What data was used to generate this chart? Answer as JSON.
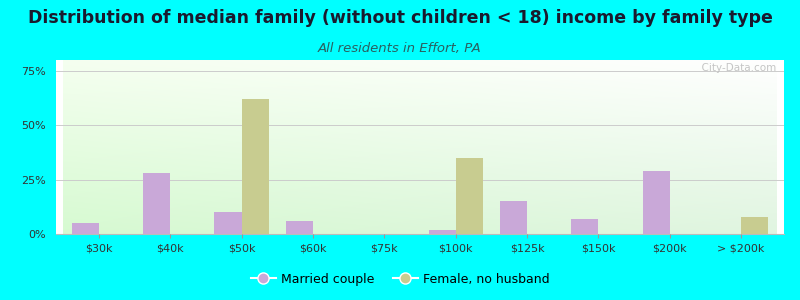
{
  "title": "Distribution of median family (without children < 18) income by family type",
  "subtitle": "All residents in Effort, PA",
  "categories": [
    "$30k",
    "$40k",
    "$50k",
    "$60k",
    "$75k",
    "$100k",
    "$125k",
    "$150k",
    "$200k",
    "> $200k"
  ],
  "married_couple": [
    5,
    28,
    10,
    6,
    0,
    2,
    15,
    7,
    29,
    0
  ],
  "female_no_husband": [
    0,
    0,
    62,
    0,
    0,
    35,
    0,
    0,
    0,
    8
  ],
  "married_color": "#c9a8d8",
  "female_color": "#c8cc90",
  "background_color": "#00ffff",
  "yticks": [
    0,
    25,
    50,
    75
  ],
  "ylim": [
    0,
    80
  ],
  "bar_width": 0.38,
  "title_fontsize": 12.5,
  "subtitle_fontsize": 9.5,
  "watermark": "  City-Data.com",
  "legend_married": "Married couple",
  "legend_female": "Female, no husband"
}
